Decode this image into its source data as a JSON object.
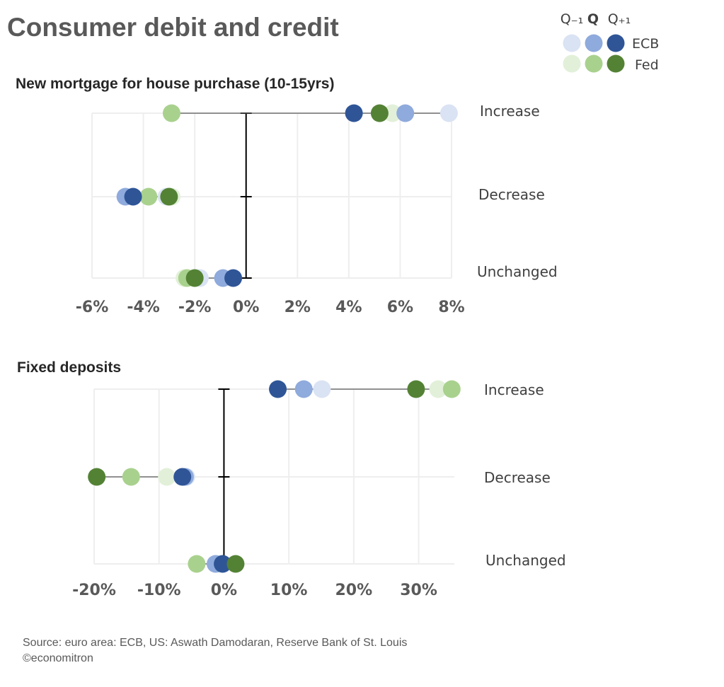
{
  "title": "Consumer debit and credit",
  "legend": {
    "headers": [
      "Q₋₁",
      "Q",
      "Q₊₁"
    ],
    "series": [
      {
        "name": "ECB",
        "colors": [
          "#dae3f3",
          "#8faadc",
          "#2f5597"
        ]
      },
      {
        "name": "Fed",
        "colors": [
          "#e2f0d9",
          "#a9d18e",
          "#548235"
        ]
      }
    ]
  },
  "source": "Source: euro area: ECB, US: Aswath Damodaran, Reserve Bank of St. Louis",
  "copyright": "©economitron",
  "chart_data": [
    {
      "type": "scatter",
      "title": "New mortgage for house purchase (10-15yrs)",
      "categories": [
        "Increase",
        "Decrease",
        "Unchanged"
      ],
      "xlim": [
        -6,
        8
      ],
      "xticks": [
        -6,
        -4,
        -2,
        0,
        2,
        4,
        6,
        8
      ],
      "xtick_labels": [
        "-6%",
        "-4%",
        "-2%",
        "0%",
        "2%",
        "4%",
        "6%",
        "8%"
      ],
      "grid": true,
      "series": [
        {
          "name": "ECB Q-1",
          "values": [
            7.9,
            -3.1,
            -1.8
          ]
        },
        {
          "name": "ECB Q",
          "values": [
            6.2,
            -4.7,
            -0.9
          ]
        },
        {
          "name": "ECB Q+1",
          "values": [
            4.2,
            -4.4,
            -0.5
          ]
        },
        {
          "name": "Fed Q-1",
          "values": [
            5.7,
            -2.9,
            -2.4
          ]
        },
        {
          "name": "Fed Q",
          "values": [
            -2.9,
            -3.8,
            -2.3
          ]
        },
        {
          "name": "Fed Q+1",
          "values": [
            5.2,
            -3.0,
            -2.0
          ]
        }
      ]
    },
    {
      "type": "scatter",
      "title": "Fixed deposits",
      "categories": [
        "Increase",
        "Decrease",
        "Unchanged"
      ],
      "xlim": [
        -20,
        35.5
      ],
      "xticks": [
        -20,
        -10,
        0,
        10,
        20,
        30
      ],
      "xtick_labels": [
        "-20%",
        "-10%",
        "0%",
        "10%",
        "20%",
        "30%"
      ],
      "grid": true,
      "series": [
        {
          "name": "ECB Q-1",
          "values": [
            15.1,
            -5.8,
            -1.0
          ]
        },
        {
          "name": "ECB Q",
          "values": [
            12.3,
            -6.0,
            -1.3
          ]
        },
        {
          "name": "ECB Q+1",
          "values": [
            8.3,
            -6.4,
            -0.2
          ]
        },
        {
          "name": "Fed Q-1",
          "values": [
            33.0,
            -8.8,
            -1.0
          ]
        },
        {
          "name": "Fed Q",
          "values": [
            35.1,
            -14.3,
            -4.2
          ]
        },
        {
          "name": "Fed Q+1",
          "values": [
            29.6,
            -19.6,
            1.8
          ]
        }
      ]
    }
  ]
}
